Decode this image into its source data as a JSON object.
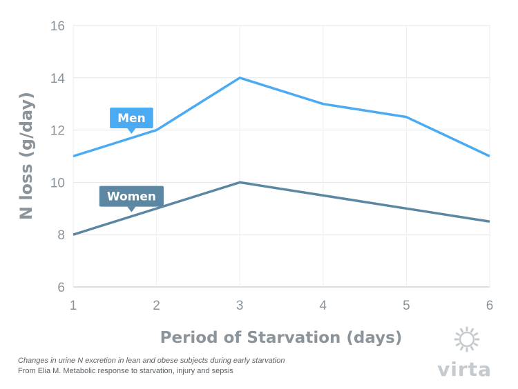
{
  "chart_data": {
    "type": "line",
    "title": "",
    "xlabel": "Period of Starvation (days)",
    "ylabel": "N loss (g/day)",
    "x": [
      1,
      2,
      3,
      4,
      5,
      6
    ],
    "xlim": [
      1,
      6
    ],
    "ylim": [
      6,
      16
    ],
    "yticks": [
      6,
      8,
      10,
      12,
      14,
      16
    ],
    "grid": true,
    "series": [
      {
        "name": "Men",
        "values": [
          11,
          12,
          14,
          13,
          12.5,
          11
        ],
        "color": "#4aabf2",
        "label_at_x": 1.7
      },
      {
        "name": "Women",
        "values": [
          8,
          9,
          10,
          9.5,
          9,
          8.5
        ],
        "color": "#5b87a3",
        "label_at_x": 1.7
      }
    ]
  },
  "caption": {
    "line1": "Changes in urine N excretion in lean and obese subjects during early starvation",
    "line2": "From Elia M. Metabolic response to starvation, injury and sepsis"
  },
  "brand": {
    "name": "virta",
    "logo_icon": "sun-gear-icon",
    "color": "#c4cace"
  }
}
